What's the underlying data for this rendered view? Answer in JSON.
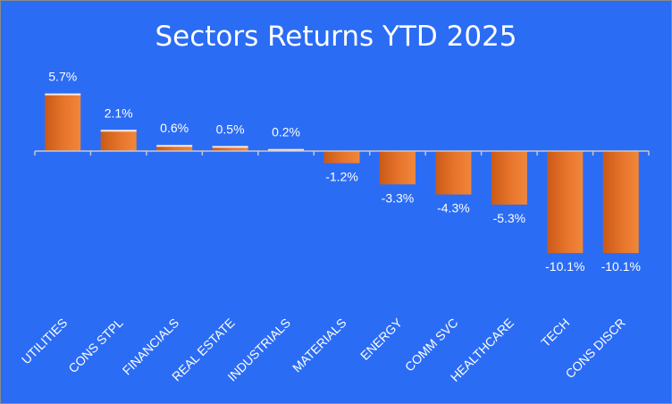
{
  "chart_data": {
    "type": "bar",
    "title": "Sectors Returns YTD 2025",
    "xlabel": "",
    "ylabel": "",
    "ylim": [
      -11,
      7
    ],
    "grid": false,
    "categories": [
      "UTILITIES",
      "CONS STPL",
      "FINANCIALS",
      "REAL ESTATE",
      "INDUSTRIALS",
      "MATERIALS",
      "ENERGY",
      "COMM SVC",
      "HEALTHCARE",
      "TECH",
      "CONS DISCR"
    ],
    "values": [
      5.7,
      2.1,
      0.6,
      0.5,
      0.2,
      -1.2,
      -3.3,
      -4.3,
      -5.3,
      -10.1,
      -10.1
    ],
    "data_labels": [
      "5.7%",
      "2.1%",
      "0.6%",
      "0.5%",
      "0.2%",
      "-1.2%",
      "-3.3%",
      "-4.3%",
      "-5.3%",
      "-10.1%",
      "-10.1%"
    ],
    "colors": {
      "background": "#2b6cf5",
      "bar_light": "#f0873a",
      "bar_dark": "#c95a17",
      "text": "#ffffff",
      "axis": "#c8c8c8"
    }
  }
}
